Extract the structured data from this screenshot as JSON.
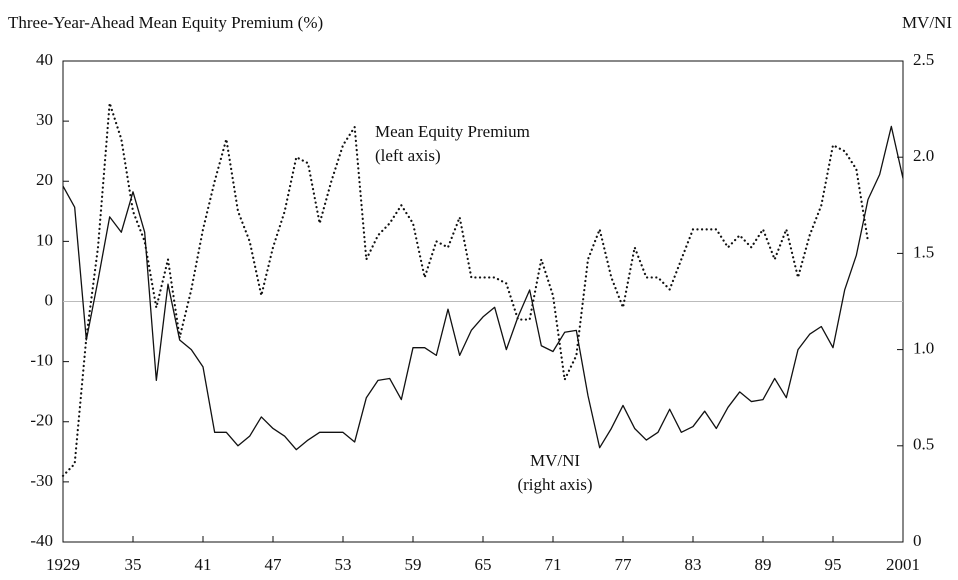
{
  "chart_data": {
    "type": "line",
    "y_label": "Three-Year-Ahead Mean Equity Premium (%)",
    "y2_label": "MV/NI",
    "x": [
      1929,
      1930,
      1931,
      1932,
      1933,
      1934,
      1935,
      1936,
      1937,
      1938,
      1939,
      1940,
      1941,
      1942,
      1943,
      1944,
      1945,
      1946,
      1947,
      1948,
      1949,
      1950,
      1951,
      1952,
      1953,
      1954,
      1955,
      1956,
      1957,
      1958,
      1959,
      1960,
      1961,
      1962,
      1963,
      1964,
      1965,
      1966,
      1967,
      1968,
      1969,
      1970,
      1971,
      1972,
      1973,
      1974,
      1975,
      1976,
      1977,
      1978,
      1979,
      1980,
      1981,
      1982,
      1983,
      1984,
      1985,
      1986,
      1987,
      1988,
      1989,
      1990,
      1991,
      1992,
      1993,
      1994,
      1995,
      1996,
      1997,
      1998,
      1999,
      2000,
      2001
    ],
    "series": [
      {
        "name": "Mean Equity Premium",
        "axis_note": "(left axis)",
        "color": "#111111",
        "style": "dotted",
        "axis": "y",
        "values": [
          -29,
          -27,
          -6,
          9,
          33,
          27,
          15,
          10,
          -1,
          7,
          -6,
          2,
          12,
          20,
          27,
          15,
          10,
          1,
          9,
          15,
          24,
          23,
          13,
          20,
          26,
          29,
          7,
          11,
          13,
          16,
          13,
          4,
          10,
          9,
          14,
          4,
          4,
          4,
          3,
          -3,
          -3,
          7,
          1,
          -13,
          -9,
          7,
          12,
          4,
          -1,
          9,
          4,
          4,
          2,
          7,
          12,
          12,
          12,
          9,
          11,
          9,
          12,
          7,
          12,
          4,
          11,
          16,
          26,
          25,
          22,
          10,
          null,
          null,
          null
        ]
      },
      {
        "name": "MV/NI",
        "axis_note": "(right axis)",
        "color": "#111111",
        "style": "solid",
        "axis": "y2",
        "values": [
          1.85,
          1.74,
          1.05,
          1.36,
          1.69,
          1.61,
          1.82,
          1.61,
          0.84,
          1.34,
          1.05,
          1.0,
          0.91,
          0.57,
          0.57,
          0.5,
          0.55,
          0.65,
          0.59,
          0.55,
          0.48,
          0.53,
          0.57,
          0.57,
          0.57,
          0.52,
          0.75,
          0.84,
          0.85,
          0.74,
          1.01,
          1.01,
          0.97,
          1.21,
          0.97,
          1.1,
          1.17,
          1.22,
          1.0,
          1.17,
          1.31,
          1.02,
          0.99,
          1.09,
          1.1,
          0.76,
          0.49,
          0.59,
          0.71,
          0.59,
          0.53,
          0.57,
          0.69,
          0.57,
          0.6,
          0.68,
          0.59,
          0.7,
          0.78,
          0.73,
          0.74,
          0.85,
          0.75,
          1.0,
          1.08,
          1.12,
          1.01,
          1.31,
          1.49,
          1.78,
          1.91,
          2.16,
          1.89
        ]
      }
    ],
    "xlim": [
      1929,
      2001
    ],
    "xticks": [
      1929,
      {
        "value": 1935,
        "label": "35"
      },
      {
        "value": 1941,
        "label": "41"
      },
      {
        "value": 1947,
        "label": "47"
      },
      {
        "value": 1953,
        "label": "53"
      },
      {
        "value": 1959,
        "label": "59"
      },
      {
        "value": 1965,
        "label": "65"
      },
      {
        "value": 1971,
        "label": "71"
      },
      {
        "value": 1977,
        "label": "77"
      },
      {
        "value": 1983,
        "label": "83"
      },
      {
        "value": 1989,
        "label": "89"
      },
      {
        "value": 1995,
        "label": "95"
      },
      2001
    ],
    "ylim": [
      -40,
      40
    ],
    "yticks": [
      -40,
      -30,
      -20,
      -10,
      0,
      10,
      20,
      30,
      40
    ],
    "y2lim": [
      0,
      2.5
    ],
    "y2ticks": [
      0,
      0.5,
      {
        "value": 1,
        "label": "1.0"
      },
      1.5,
      {
        "value": 2,
        "label": "2.0"
      },
      2.5
    ],
    "zero_line": true
  }
}
